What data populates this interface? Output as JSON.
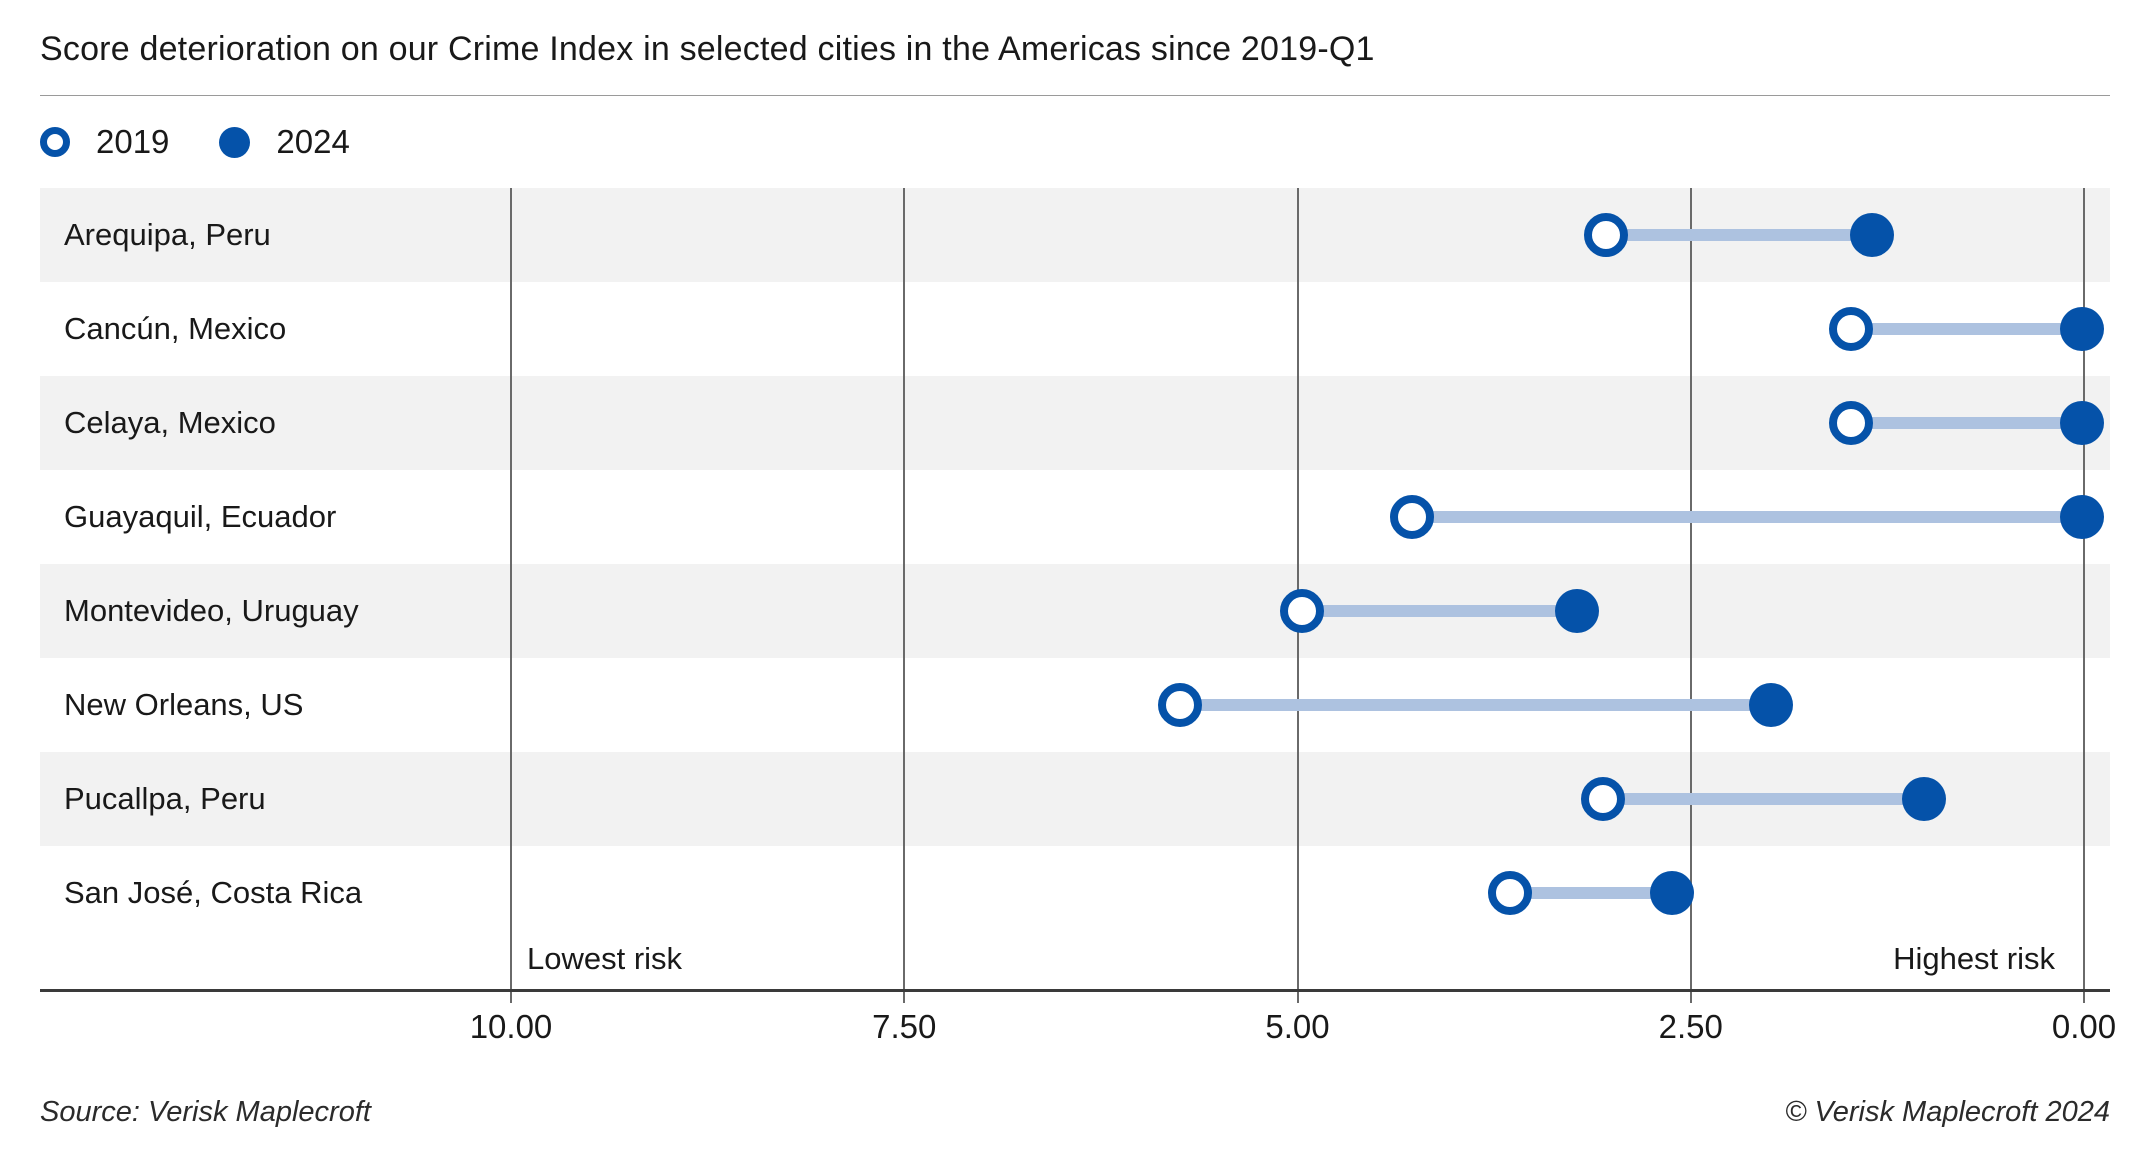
{
  "header": {
    "title": "Score deterioration on our Crime Index in selected cities in the Americas since 2019-Q1"
  },
  "legend": [
    {
      "label": "2019",
      "marker": "open-circle"
    },
    {
      "label": "2024",
      "marker": "filled-circle"
    }
  ],
  "chart_data": {
    "type": "dumbbell",
    "title": "Score deterioration on our Crime Index in selected cities in the Americas since 2019-Q1",
    "categories": [
      "Arequipa, Peru",
      "Cancún, Mexico",
      "Celaya, Mexico",
      "Guayaquil, Ecuador",
      "Montevideo, Uruguay",
      "New Orleans, US",
      "Pucallpa, Peru",
      "San José, Costa Rica"
    ],
    "series": [
      {
        "name": "2019",
        "marker": "open",
        "values": [
          3.04,
          1.48,
          1.48,
          4.27,
          4.97,
          5.75,
          3.06,
          3.65
        ]
      },
      {
        "name": "2024",
        "marker": "filled",
        "values": [
          1.35,
          0.01,
          0.01,
          0.01,
          3.22,
          1.99,
          1.02,
          2.62
        ]
      }
    ],
    "x_axis": {
      "ticks": [
        "10.00",
        "7.50",
        "5.00",
        "2.50",
        "0.00"
      ],
      "tick_values": [
        10,
        7.5,
        5,
        2.5,
        0
      ],
      "min": 0,
      "max": 10,
      "direction": "reversed",
      "left_label": "Lowest risk",
      "right_label": "Highest risk"
    },
    "legend_position": "top-left",
    "grid": "vertical",
    "row_striping": true
  },
  "footer": {
    "source": "Source: Verisk Maplecroft",
    "copyright": "© Verisk Maplecroft 2024"
  },
  "colors": {
    "accent_blue": "#0552a9",
    "connector_blue": "#adc2e0",
    "row_band_gray": "#f2f2f2",
    "gridline_gray": "#6a6a6a",
    "axis_dark": "#3a3a3a",
    "text_dark": "#191919"
  }
}
